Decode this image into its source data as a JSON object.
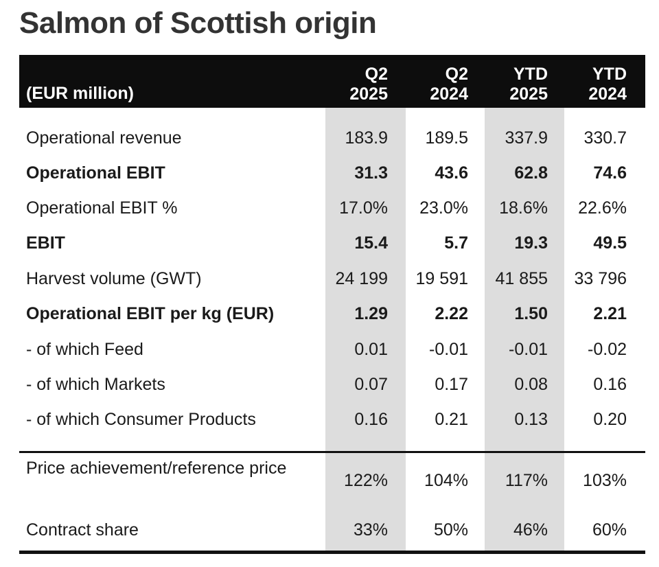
{
  "title": "Salmon of Scottish origin",
  "table": {
    "unit_label": "(EUR million)",
    "columns": [
      {
        "line1": "Q2",
        "line2": "2025"
      },
      {
        "line1": "Q2",
        "line2": "2024"
      },
      {
        "line1": "YTD",
        "line2": "2025"
      },
      {
        "line1": "YTD",
        "line2": "2024"
      }
    ],
    "rows": [
      {
        "label": "Operational revenue",
        "bold": false,
        "values": [
          "183.9",
          "189.5",
          "337.9",
          "330.7"
        ]
      },
      {
        "label": "Operational EBIT",
        "bold": true,
        "values": [
          "31.3",
          "43.6",
          "62.8",
          "74.6"
        ]
      },
      {
        "label": "Operational EBIT %",
        "bold": false,
        "values": [
          "17.0%",
          "23.0%",
          "18.6%",
          "22.6%"
        ]
      },
      {
        "label": "EBIT",
        "bold": true,
        "values": [
          "15.4",
          "5.7",
          "19.3",
          "49.5"
        ]
      },
      {
        "label": "Harvest volume (GWT)",
        "bold": false,
        "values": [
          "24 199",
          "19 591",
          "41 855",
          "33 796"
        ]
      },
      {
        "label": "Operational EBIT per kg (EUR)",
        "bold": true,
        "values": [
          "1.29",
          "2.22",
          "1.50",
          "2.21"
        ]
      },
      {
        "label": "- of which Feed",
        "bold": false,
        "values": [
          "0.01",
          "-0.01",
          "-0.01",
          "-0.02"
        ]
      },
      {
        "label": "- of which Markets",
        "bold": false,
        "values": [
          "0.07",
          "0.17",
          "0.08",
          "0.16"
        ]
      },
      {
        "label": "- of which Consumer Products",
        "bold": false,
        "values": [
          "0.16",
          "0.21",
          "0.13",
          "0.20"
        ]
      }
    ],
    "footer_rows": [
      {
        "label": "Price achievement/reference price",
        "values": [
          "122%",
          "104%",
          "117%",
          "103%"
        ]
      },
      {
        "label": "Contract share",
        "values": [
          "33%",
          "50%",
          "46%",
          "60%"
        ]
      }
    ]
  }
}
